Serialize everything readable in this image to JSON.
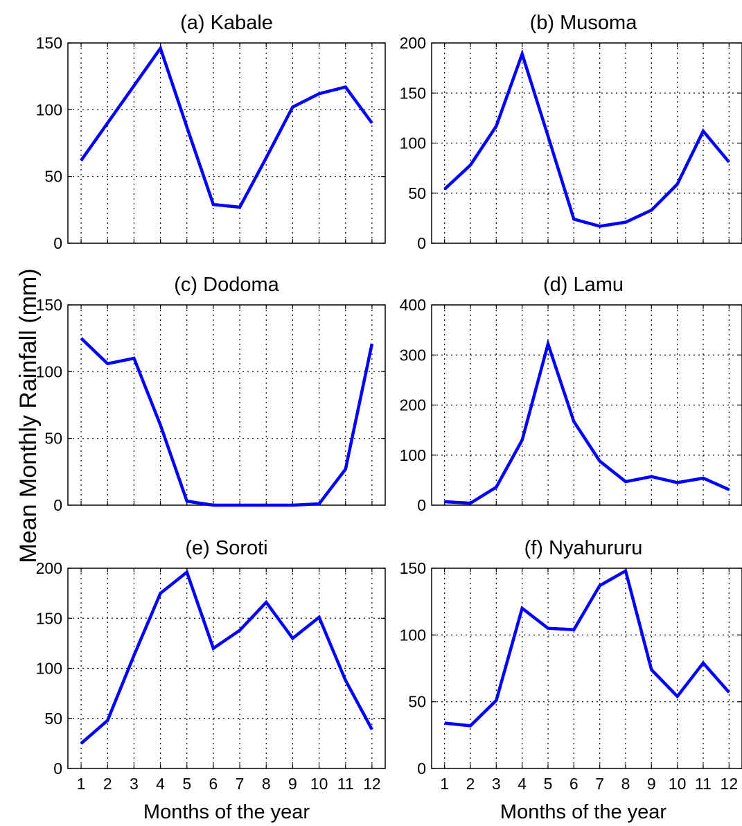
{
  "figure": {
    "ylabel": "Mean Monthly Rainfall (mm)",
    "xlabel": "Months of the year",
    "line_color": "#0000ff"
  },
  "chart_data": [
    {
      "type": "line",
      "title": "(a) Kabale",
      "x": [
        1,
        2,
        3,
        4,
        5,
        6,
        7,
        8,
        9,
        10,
        11,
        12
      ],
      "series": [
        {
          "values": [
            62,
            90,
            118,
            146,
            87,
            29,
            27,
            64,
            102,
            112,
            117,
            90
          ]
        }
      ],
      "xlim": [
        0.5,
        12.5
      ],
      "ylim": [
        0,
        150
      ],
      "yticks": [
        0,
        50,
        100,
        150
      ],
      "xticks": [
        1,
        2,
        3,
        4,
        5,
        6,
        7,
        8,
        9,
        10,
        11,
        12
      ],
      "show_xtick_labels": false,
      "grid": true
    },
    {
      "type": "line",
      "title": "(b) Musoma",
      "x": [
        1,
        2,
        3,
        4,
        5,
        6,
        7,
        8,
        9,
        10,
        11,
        12
      ],
      "series": [
        {
          "values": [
            54,
            78,
            117,
            189,
            107,
            24,
            17,
            21,
            33,
            59,
            112,
            81
          ]
        }
      ],
      "xlim": [
        0.5,
        12.5
      ],
      "ylim": [
        0,
        200
      ],
      "yticks": [
        0,
        50,
        100,
        150,
        200
      ],
      "xticks": [
        1,
        2,
        3,
        4,
        5,
        6,
        7,
        8,
        9,
        10,
        11,
        12
      ],
      "show_xtick_labels": false,
      "grid": true
    },
    {
      "type": "line",
      "title": "(c) Dodoma",
      "x": [
        1,
        2,
        3,
        4,
        5,
        6,
        7,
        8,
        9,
        10,
        11,
        12
      ],
      "series": [
        {
          "values": [
            125,
            106,
            110,
            60,
            3,
            0,
            0,
            0,
            0,
            1,
            27,
            121
          ]
        }
      ],
      "xlim": [
        0.5,
        12.5
      ],
      "ylim": [
        0,
        150
      ],
      "yticks": [
        0,
        50,
        100,
        150
      ],
      "xticks": [
        1,
        2,
        3,
        4,
        5,
        6,
        7,
        8,
        9,
        10,
        11,
        12
      ],
      "show_xtick_labels": false,
      "grid": true
    },
    {
      "type": "line",
      "title": "(d) Lamu",
      "x": [
        1,
        2,
        3,
        4,
        5,
        6,
        7,
        8,
        9,
        10,
        11,
        12
      ],
      "series": [
        {
          "values": [
            7,
            4,
            36,
            130,
            322,
            167,
            88,
            47,
            57,
            45,
            54,
            31
          ]
        }
      ],
      "xlim": [
        0.5,
        12.5
      ],
      "ylim": [
        0,
        400
      ],
      "yticks": [
        0,
        100,
        200,
        300,
        400
      ],
      "xticks": [
        1,
        2,
        3,
        4,
        5,
        6,
        7,
        8,
        9,
        10,
        11,
        12
      ],
      "show_xtick_labels": false,
      "grid": true
    },
    {
      "type": "line",
      "title": "(e) Soroti",
      "x": [
        1,
        2,
        3,
        4,
        5,
        6,
        7,
        8,
        9,
        10,
        11,
        12
      ],
      "series": [
        {
          "values": [
            25,
            48,
            113,
            175,
            196,
            120,
            138,
            166,
            130,
            151,
            88,
            39
          ]
        }
      ],
      "xlim": [
        0.5,
        12.5
      ],
      "ylim": [
        0,
        200
      ],
      "yticks": [
        0,
        50,
        100,
        150,
        200
      ],
      "xticks": [
        1,
        2,
        3,
        4,
        5,
        6,
        7,
        8,
        9,
        10,
        11,
        12
      ],
      "show_xtick_labels": true,
      "xlabel": "Months of the year",
      "grid": true
    },
    {
      "type": "line",
      "title": "(f) Nyahururu",
      "x": [
        1,
        2,
        3,
        4,
        5,
        6,
        7,
        8,
        9,
        10,
        11,
        12
      ],
      "series": [
        {
          "values": [
            34,
            32,
            51,
            120,
            105,
            104,
            137,
            148,
            74,
            54,
            79,
            57
          ]
        }
      ],
      "xlim": [
        0.5,
        12.5
      ],
      "ylim": [
        0,
        150
      ],
      "yticks": [
        0,
        50,
        100,
        150
      ],
      "xticks": [
        1,
        2,
        3,
        4,
        5,
        6,
        7,
        8,
        9,
        10,
        11,
        12
      ],
      "show_xtick_labels": true,
      "xlabel": "Months of the year",
      "grid": true
    }
  ]
}
